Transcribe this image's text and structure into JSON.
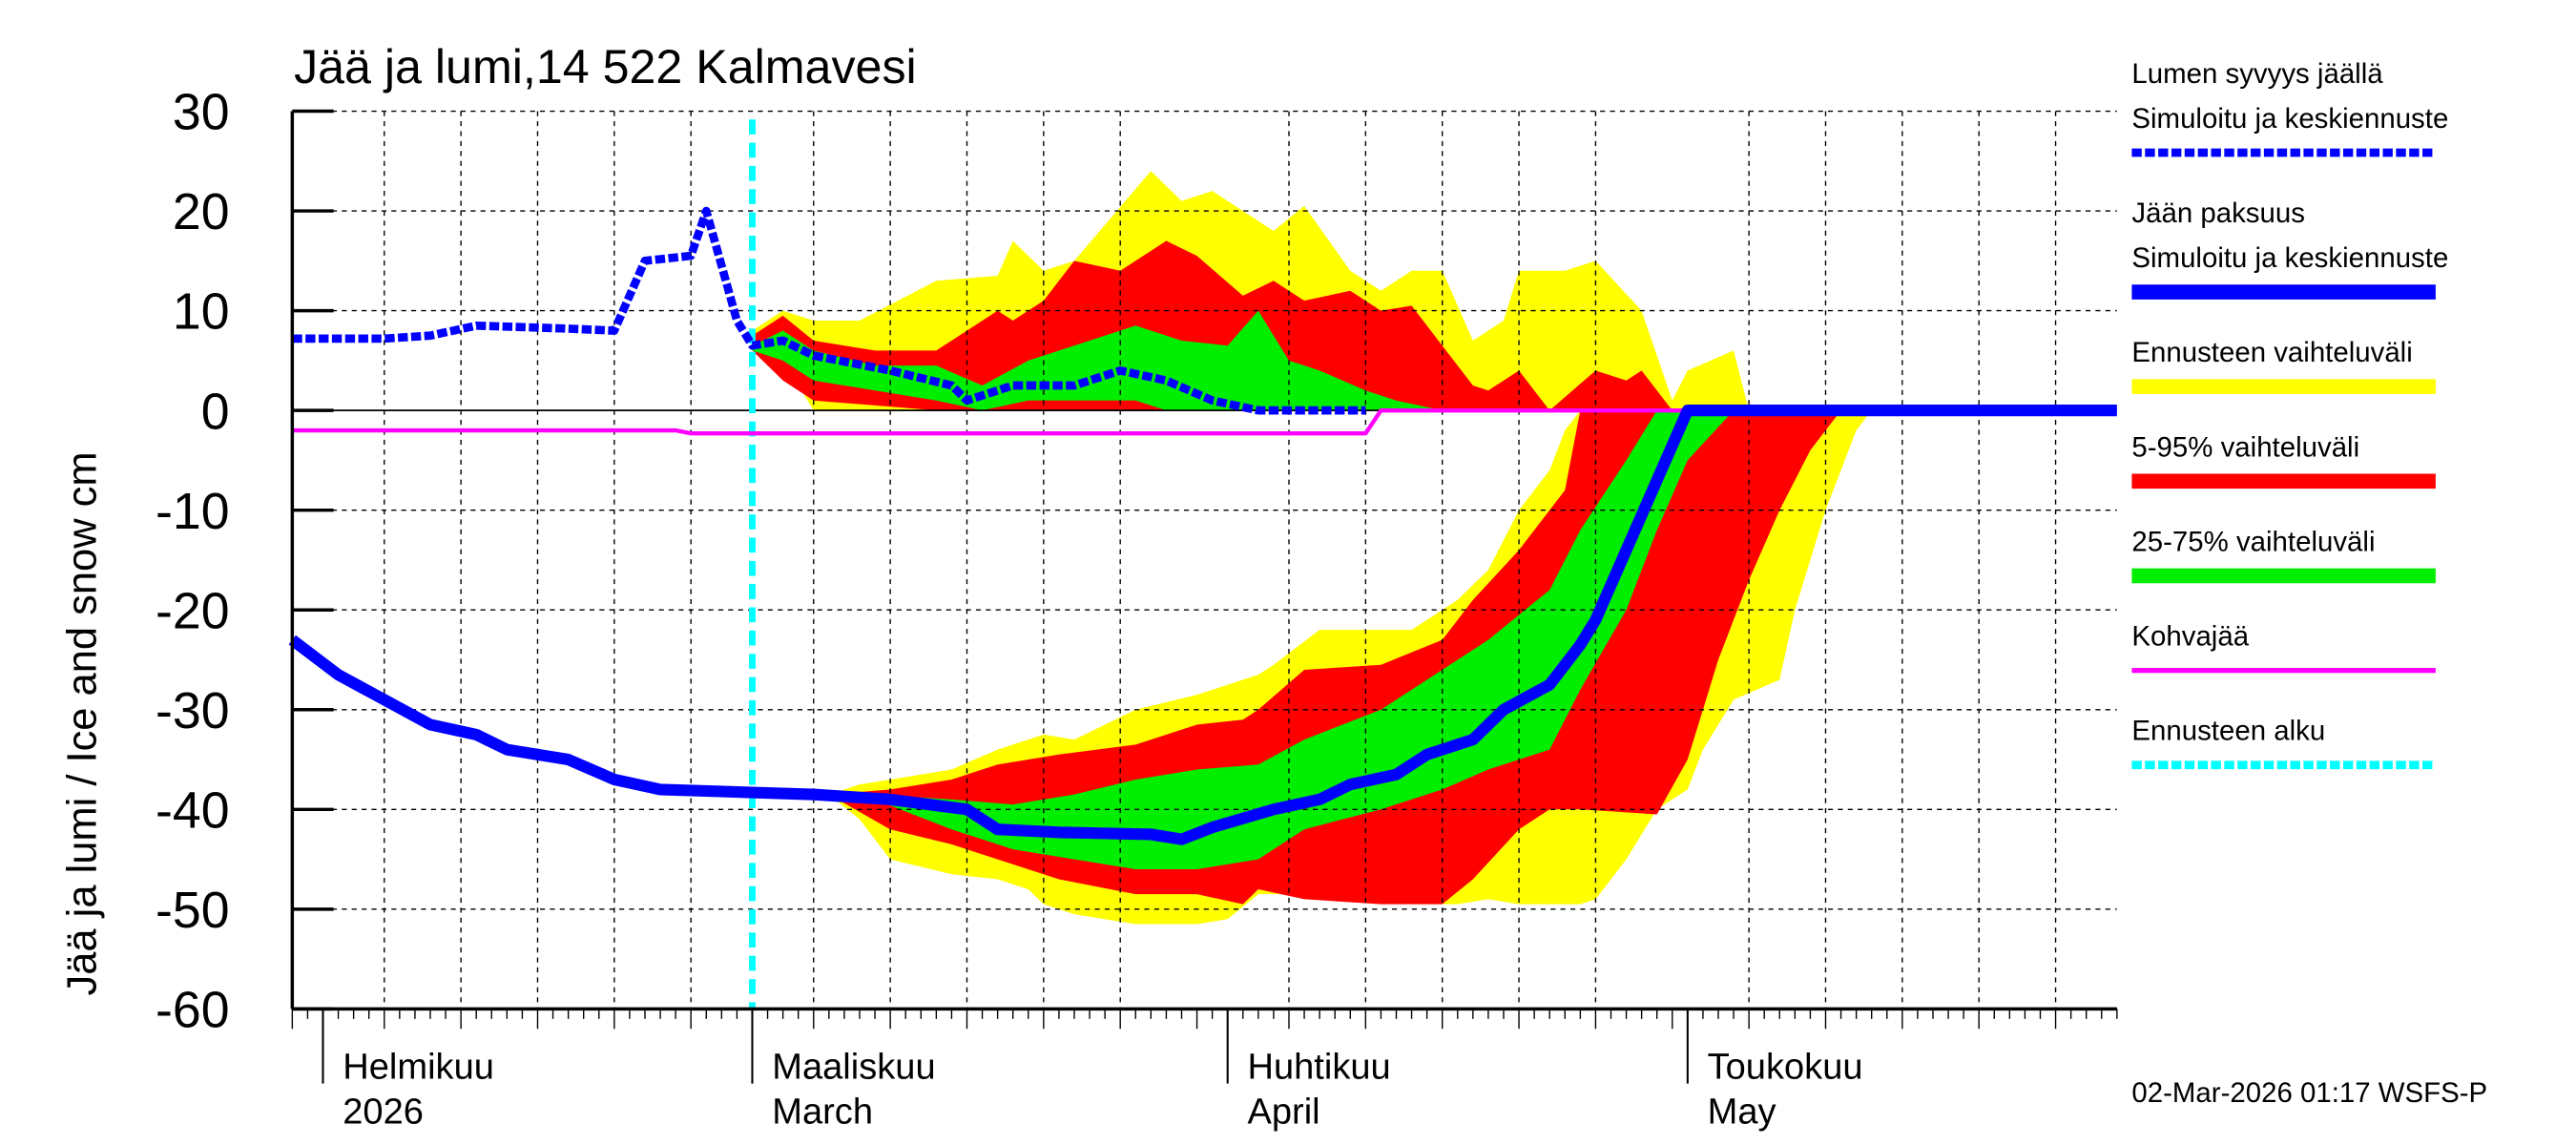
{
  "chart_data": {
    "type": "area",
    "title": "Jää ja lumi,14 522 Kalmavesi",
    "ylabel": "Jää ja lumi / Ice and snow    cm",
    "ylim": [
      -60,
      30
    ],
    "yticks": [
      30,
      20,
      10,
      0,
      -10,
      -20,
      -30,
      -40,
      -50,
      -60
    ],
    "xlim": [
      "2026-01-30",
      "2026-05-29"
    ],
    "grid": true,
    "legend_position": "right",
    "month_labels": [
      {
        "date": "2026-02-01",
        "line1": "Helmikuu",
        "line2": "2026"
      },
      {
        "date": "2026-03-01",
        "line1": "Maaliskuu",
        "line2": "March"
      },
      {
        "date": "2026-04-01",
        "line1": "Huhtikuu",
        "line2": "April"
      },
      {
        "date": "2026-05-01",
        "line1": "Toukokuu",
        "line2": "May"
      }
    ],
    "forecast_start": "2026-03-01",
    "colors": {
      "snow": "#0000ff",
      "ice": "#0000ff",
      "range": "#ffff00",
      "p5_95": "#ff0000",
      "p25_75": "#00ee00",
      "slush": "#ff00ff",
      "forecast_start": "#00ffff"
    },
    "bands": [
      {
        "name": "Ennusteen vaihteluväli",
        "color": "#ffff00",
        "part": "snow",
        "points": [
          [
            "2026-03-01",
            6,
            8
          ],
          [
            "2026-03-03",
            5,
            10
          ],
          [
            "2026-03-05",
            0,
            9
          ],
          [
            "2026-03-08",
            0,
            9
          ],
          [
            "2026-03-13",
            0,
            13
          ],
          [
            "2026-03-17",
            0,
            13.5
          ],
          [
            "2026-03-18",
            0,
            17
          ],
          [
            "2026-03-20",
            0,
            14
          ],
          [
            "2026-03-22",
            0,
            15
          ],
          [
            "2026-03-27",
            0,
            24
          ],
          [
            "2026-03-29",
            0,
            21
          ],
          [
            "2026-03-31",
            0,
            22
          ],
          [
            "2026-04-02",
            0,
            20
          ],
          [
            "2026-04-04",
            0,
            18
          ],
          [
            "2026-04-06",
            0,
            20.5
          ],
          [
            "2026-04-09",
            0,
            14
          ],
          [
            "2026-04-11",
            0,
            12
          ],
          [
            "2026-04-13",
            0,
            14
          ],
          [
            "2026-04-15",
            0,
            14
          ],
          [
            "2026-04-17",
            0,
            7
          ],
          [
            "2026-04-19",
            0,
            9
          ],
          [
            "2026-04-20",
            0,
            14
          ],
          [
            "2026-04-23",
            0,
            14
          ],
          [
            "2026-04-25",
            0,
            15
          ],
          [
            "2026-04-28",
            0,
            10
          ],
          [
            "2026-04-30",
            0,
            1
          ],
          [
            "2026-05-01",
            0,
            4
          ],
          [
            "2026-05-04",
            0,
            6
          ],
          [
            "2026-05-05",
            0,
            0
          ]
        ]
      },
      {
        "name": "5-95% vaihteluväli",
        "color": "#ff0000",
        "part": "snow",
        "points": [
          [
            "2026-03-01",
            6,
            7.5
          ],
          [
            "2026-03-03",
            3,
            9.5
          ],
          [
            "2026-03-05",
            1,
            7
          ],
          [
            "2026-03-09",
            0.5,
            6
          ],
          [
            "2026-03-13",
            0,
            6
          ],
          [
            "2026-03-17",
            0,
            10
          ],
          [
            "2026-03-18",
            0,
            9
          ],
          [
            "2026-03-20",
            0,
            11
          ],
          [
            "2026-03-22",
            0,
            15
          ],
          [
            "2026-03-25",
            0,
            14
          ],
          [
            "2026-03-28",
            0,
            17
          ],
          [
            "2026-03-30",
            0,
            15.5
          ],
          [
            "2026-04-02",
            0,
            11.5
          ],
          [
            "2026-04-04",
            0,
            13
          ],
          [
            "2026-04-06",
            0,
            11
          ],
          [
            "2026-04-09",
            0,
            12
          ],
          [
            "2026-04-11",
            0,
            10
          ],
          [
            "2026-04-13",
            0,
            10.5
          ],
          [
            "2026-04-15",
            0,
            6.5
          ],
          [
            "2026-04-17",
            0,
            2.5
          ],
          [
            "2026-04-18",
            0,
            2
          ],
          [
            "2026-04-20",
            0,
            4
          ],
          [
            "2026-04-22",
            0,
            0
          ],
          [
            "2026-04-25",
            0,
            4
          ],
          [
            "2026-04-27",
            0,
            3
          ],
          [
            "2026-04-28",
            0,
            4
          ],
          [
            "2026-04-30",
            0,
            0
          ]
        ]
      },
      {
        "name": "25-75% vaihteluväli",
        "color": "#00ee00",
        "part": "snow",
        "points": [
          [
            "2026-03-01",
            6,
            6.5
          ],
          [
            "2026-03-03",
            5,
            8
          ],
          [
            "2026-03-05",
            3,
            6
          ],
          [
            "2026-03-09",
            2,
            4.5
          ],
          [
            "2026-03-13",
            1,
            4.5
          ],
          [
            "2026-03-16",
            0,
            2.5
          ],
          [
            "2026-03-19",
            1,
            5
          ],
          [
            "2026-03-23",
            1,
            7
          ],
          [
            "2026-03-26",
            1,
            8.5
          ],
          [
            "2026-03-28",
            0,
            7.5
          ],
          [
            "2026-03-29",
            0,
            7
          ],
          [
            "2026-04-01",
            0,
            6.5
          ],
          [
            "2026-04-03",
            0,
            10
          ],
          [
            "2026-04-05",
            0,
            5
          ],
          [
            "2026-04-07",
            0,
            4
          ],
          [
            "2026-04-10",
            0,
            2
          ],
          [
            "2026-04-12",
            0,
            1
          ],
          [
            "2026-04-15",
            0,
            0
          ]
        ]
      },
      {
        "name": "Ennusteen vaihteluväli",
        "color": "#ffff00",
        "part": "ice",
        "points": [
          [
            "2026-03-06",
            -38.5,
            -38.5
          ],
          [
            "2026-03-08",
            -41,
            -37.5
          ],
          [
            "2026-03-10",
            -45,
            -37
          ],
          [
            "2026-03-14",
            -46.5,
            -36
          ],
          [
            "2026-03-17",
            -47,
            -34
          ],
          [
            "2026-03-19",
            -48,
            -33
          ],
          [
            "2026-03-20",
            -49.5,
            -32.5
          ],
          [
            "2026-03-22",
            -50.5,
            -33
          ],
          [
            "2026-03-26",
            -51.5,
            -30
          ],
          [
            "2026-03-30",
            -51.5,
            -28.5
          ],
          [
            "2026-04-01",
            -51,
            -27.5
          ],
          [
            "2026-04-03",
            -48.5,
            -26.5
          ],
          [
            "2026-04-04",
            -48.5,
            -25.5
          ],
          [
            "2026-04-07",
            -48.5,
            -22
          ],
          [
            "2026-04-10",
            -49,
            -22
          ],
          [
            "2026-04-13",
            -49.5,
            -22
          ],
          [
            "2026-04-16",
            -49.5,
            -19
          ],
          [
            "2026-04-18",
            -49,
            -16
          ],
          [
            "2026-04-20",
            -49.5,
            -10
          ],
          [
            "2026-04-22",
            -49.5,
            -6
          ],
          [
            "2026-04-23",
            -49.5,
            -2
          ],
          [
            "2026-04-24",
            -49.5,
            0
          ],
          [
            "2026-04-25",
            -49,
            0
          ],
          [
            "2026-04-27",
            -45,
            0
          ],
          [
            "2026-04-29",
            -40,
            0
          ],
          [
            "2026-05-01",
            -38,
            0
          ],
          [
            "2026-05-02",
            -34,
            0
          ],
          [
            "2026-05-04",
            -29,
            0
          ],
          [
            "2026-05-07",
            -27,
            0
          ],
          [
            "2026-05-08",
            -20,
            0
          ],
          [
            "2026-05-10",
            -10,
            0
          ],
          [
            "2026-05-12",
            -2,
            0
          ],
          [
            "2026-05-13",
            0,
            0
          ]
        ]
      },
      {
        "name": "5-95% vaihteluväli",
        "color": "#ff0000",
        "part": "ice",
        "points": [
          [
            "2026-03-06",
            -38.5,
            -38.5
          ],
          [
            "2026-03-10",
            -42,
            -38
          ],
          [
            "2026-03-14",
            -43.5,
            -37
          ],
          [
            "2026-03-17",
            -45,
            -35.5
          ],
          [
            "2026-03-21",
            -47,
            -34.5
          ],
          [
            "2026-03-26",
            -48.5,
            -33.5
          ],
          [
            "2026-03-30",
            -48.5,
            -31.5
          ],
          [
            "2026-04-02",
            -49.5,
            -31
          ],
          [
            "2026-04-03",
            -48,
            -30
          ],
          [
            "2026-04-06",
            -49,
            -26
          ],
          [
            "2026-04-11",
            -49.5,
            -25.5
          ],
          [
            "2026-04-15",
            -49.5,
            -23
          ],
          [
            "2026-04-17",
            -47,
            -19
          ],
          [
            "2026-04-20",
            -42,
            -14
          ],
          [
            "2026-04-22",
            -40,
            -10
          ],
          [
            "2026-04-23",
            -40,
            -8
          ],
          [
            "2026-04-24",
            -40,
            0
          ],
          [
            "2026-04-29",
            -40.5,
            0
          ],
          [
            "2026-05-01",
            -35,
            0
          ],
          [
            "2026-05-03",
            -25,
            0
          ],
          [
            "2026-05-05",
            -17,
            0
          ],
          [
            "2026-05-07",
            -10,
            0
          ],
          [
            "2026-05-09",
            -4,
            0
          ],
          [
            "2026-05-11",
            0,
            0
          ]
        ]
      },
      {
        "name": "25-75% vaihteluväli",
        "color": "#00ee00",
        "part": "ice",
        "points": [
          [
            "2026-03-09",
            -39,
            -38.5
          ],
          [
            "2026-03-14",
            -42,
            -39
          ],
          [
            "2026-03-18",
            -44,
            -39.5
          ],
          [
            "2026-03-22",
            -45,
            -38.5
          ],
          [
            "2026-03-26",
            -46,
            -37
          ],
          [
            "2026-03-30",
            -46,
            -36
          ],
          [
            "2026-04-03",
            -45,
            -35.5
          ],
          [
            "2026-04-06",
            -42,
            -33
          ],
          [
            "2026-04-11",
            -40,
            -30
          ],
          [
            "2026-04-15",
            -38,
            -26
          ],
          [
            "2026-04-18",
            -36,
            -23
          ],
          [
            "2026-04-22",
            -34,
            -18
          ],
          [
            "2026-04-24",
            -28,
            -12
          ],
          [
            "2026-04-27",
            -20,
            -5
          ],
          [
            "2026-04-29",
            -12,
            0
          ],
          [
            "2026-05-01",
            -5,
            0
          ],
          [
            "2026-05-04",
            0,
            0
          ]
        ]
      }
    ],
    "series": [
      {
        "name": "Kohvajää",
        "color": "#ff00ff",
        "style": "solid-thin",
        "points": [
          [
            "2026-01-30",
            -2
          ],
          [
            "2026-02-24",
            -2
          ],
          [
            "2026-02-25",
            -2.3
          ],
          [
            "2026-04-10",
            -2.3
          ],
          [
            "2026-04-11",
            0
          ],
          [
            "2026-05-29",
            0
          ]
        ]
      },
      {
        "name": "Lumen syvyys jäällä — Simuloitu ja keskiennuste",
        "color": "#0000ff",
        "style": "dotted",
        "points": [
          [
            "2026-01-30",
            7.2
          ],
          [
            "2026-02-05",
            7.2
          ],
          [
            "2026-02-08",
            7.5
          ],
          [
            "2026-02-11",
            8.5
          ],
          [
            "2026-02-17",
            8.2
          ],
          [
            "2026-02-20",
            8
          ],
          [
            "2026-02-22",
            15
          ],
          [
            "2026-02-25",
            15.5
          ],
          [
            "2026-02-26",
            20
          ],
          [
            "2026-02-28",
            9
          ],
          [
            "2026-03-01",
            6.5
          ],
          [
            "2026-03-03",
            7
          ],
          [
            "2026-03-05",
            5.5
          ],
          [
            "2026-03-10",
            4
          ],
          [
            "2026-03-14",
            2.5
          ],
          [
            "2026-03-15",
            1
          ],
          [
            "2026-03-18",
            2.5
          ],
          [
            "2026-03-22",
            2.5
          ],
          [
            "2026-03-25",
            4
          ],
          [
            "2026-03-28",
            3
          ],
          [
            "2026-03-31",
            1
          ],
          [
            "2026-04-03",
            0
          ],
          [
            "2026-04-10",
            0
          ]
        ]
      },
      {
        "name": "Jään paksuus — Simuloitu ja keskiennuste",
        "color": "#0000ff",
        "style": "solid-thick",
        "points": [
          [
            "2026-01-30",
            -23
          ],
          [
            "2026-02-02",
            -26.5
          ],
          [
            "2026-02-05",
            -29
          ],
          [
            "2026-02-08",
            -31.5
          ],
          [
            "2026-02-11",
            -32.5
          ],
          [
            "2026-02-13",
            -34
          ],
          [
            "2026-02-17",
            -35
          ],
          [
            "2026-02-20",
            -37
          ],
          [
            "2026-02-23",
            -38
          ],
          [
            "2026-03-01",
            -38.3
          ],
          [
            "2026-03-05",
            -38.5
          ],
          [
            "2026-03-10",
            -39
          ],
          [
            "2026-03-15",
            -40
          ],
          [
            "2026-03-17",
            -42
          ],
          [
            "2026-03-21",
            -42.3
          ],
          [
            "2026-03-27",
            -42.5
          ],
          [
            "2026-03-29",
            -43
          ],
          [
            "2026-03-31",
            -41.8
          ],
          [
            "2026-04-04",
            -40
          ],
          [
            "2026-04-07",
            -39
          ],
          [
            "2026-04-09",
            -37.5
          ],
          [
            "2026-04-12",
            -36.5
          ],
          [
            "2026-04-14",
            -34.5
          ],
          [
            "2026-04-17",
            -33
          ],
          [
            "2026-04-19",
            -30
          ],
          [
            "2026-04-22",
            -27.5
          ],
          [
            "2026-04-24",
            -23.5
          ],
          [
            "2026-04-25",
            -21
          ],
          [
            "2026-04-27",
            -14
          ],
          [
            "2026-04-29",
            -7
          ],
          [
            "2026-05-01",
            0
          ],
          [
            "2026-05-29",
            0
          ]
        ]
      }
    ]
  },
  "legend": [
    {
      "line1": "Lumen syvyys jäällä",
      "line2": "Simuloitu ja keskiennuste",
      "color": "#0000ff",
      "style": "dotted"
    },
    {
      "line1": "Jään paksuus",
      "line2": "Simuloitu ja keskiennuste",
      "color": "#0000ff",
      "style": "thick"
    },
    {
      "line1": "Ennusteen vaihteluväli",
      "color": "#ffff00",
      "style": "thick"
    },
    {
      "line1": "5-95% vaihteluväli",
      "color": "#ff0000",
      "style": "thick"
    },
    {
      "line1": "25-75% vaihteluväli",
      "color": "#00ee00",
      "style": "thick"
    },
    {
      "line1": "Kohvajää",
      "color": "#ff00ff",
      "style": "thin"
    },
    {
      "line1": "Ennusteen alku",
      "color": "#00ffff",
      "style": "dotted"
    }
  ],
  "footer": {
    "timestamp": "02-Mar-2026 01:17 WSFS-P"
  }
}
